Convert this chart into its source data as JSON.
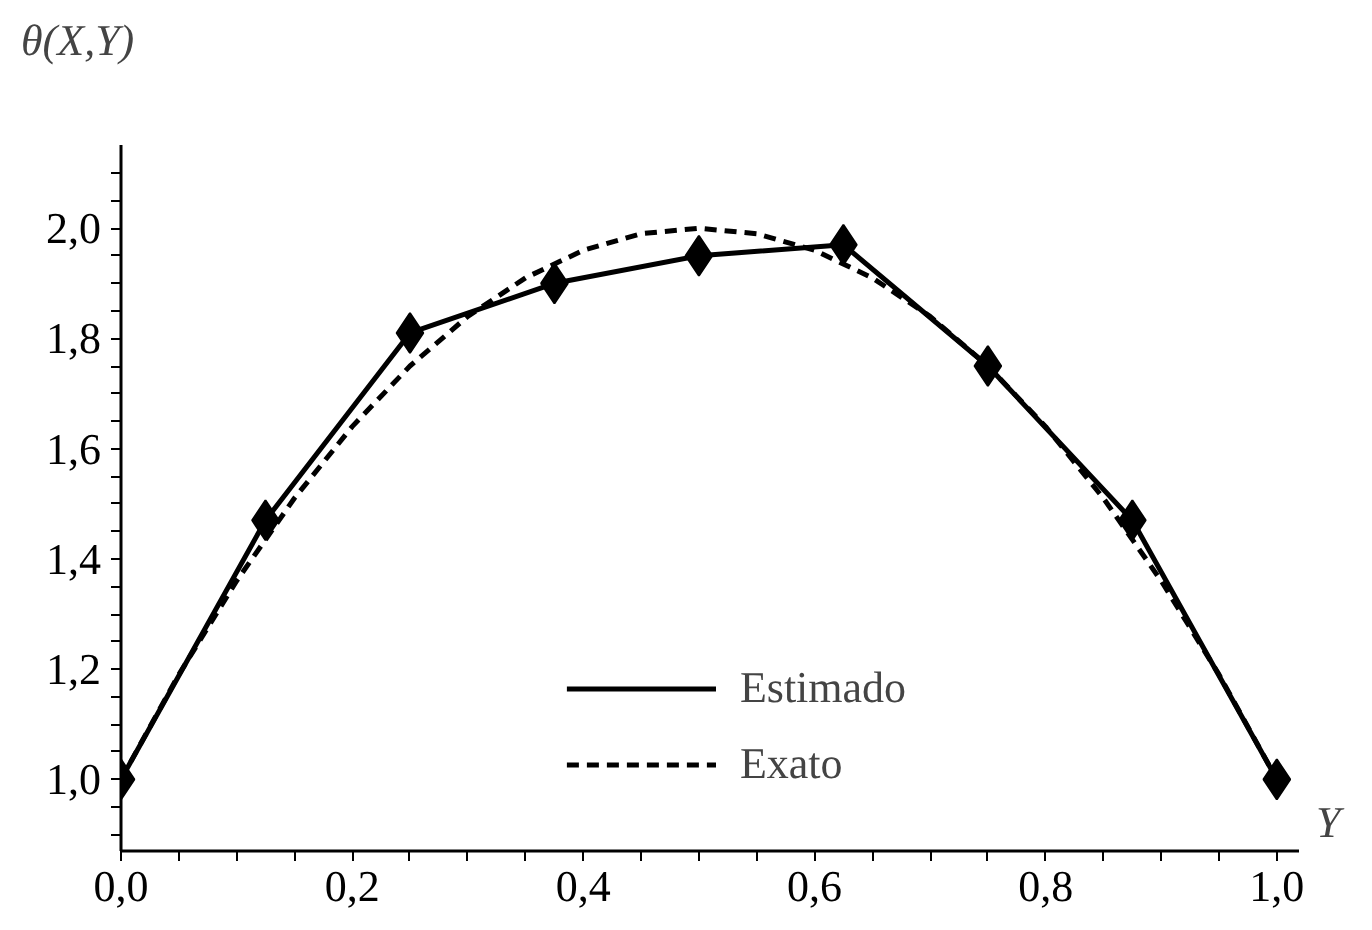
{
  "chart_data": {
    "type": "line",
    "xlabel": "Y",
    "ylabel": "θ(X,Y)",
    "xlim": [
      0,
      1.02
    ],
    "ylim": [
      0.87,
      2.15
    ],
    "xticks": [
      {
        "value": 0,
        "label": "0,0"
      },
      {
        "value": 0.05,
        "label": null
      },
      {
        "value": 0.1,
        "label": null
      },
      {
        "value": 0.15,
        "label": null
      },
      {
        "value": 0.2,
        "label": "0,2"
      },
      {
        "value": 0.25,
        "label": null
      },
      {
        "value": 0.3,
        "label": null
      },
      {
        "value": 0.35,
        "label": null
      },
      {
        "value": 0.4,
        "label": "0,4"
      },
      {
        "value": 0.45,
        "label": null
      },
      {
        "value": 0.5,
        "label": null
      },
      {
        "value": 0.55,
        "label": null
      },
      {
        "value": 0.6,
        "label": "0,6"
      },
      {
        "value": 0.65,
        "label": null
      },
      {
        "value": 0.7,
        "label": null
      },
      {
        "value": 0.75,
        "label": null
      },
      {
        "value": 0.8,
        "label": "0,8"
      },
      {
        "value": 0.85,
        "label": null
      },
      {
        "value": 0.9,
        "label": null
      },
      {
        "value": 0.95,
        "label": null
      },
      {
        "value": 1.0,
        "label": "1,0"
      }
    ],
    "yticks": [
      {
        "value": 0.9,
        "label": null
      },
      {
        "value": 0.95,
        "label": null
      },
      {
        "value": 1.0,
        "label": "1,0"
      },
      {
        "value": 1.05,
        "label": null
      },
      {
        "value": 1.1,
        "label": null
      },
      {
        "value": 1.15,
        "label": null
      },
      {
        "value": 1.2,
        "label": "1,2"
      },
      {
        "value": 1.25,
        "label": null
      },
      {
        "value": 1.3,
        "label": null
      },
      {
        "value": 1.35,
        "label": null
      },
      {
        "value": 1.4,
        "label": "1,4"
      },
      {
        "value": 1.45,
        "label": null
      },
      {
        "value": 1.5,
        "label": null
      },
      {
        "value": 1.55,
        "label": null
      },
      {
        "value": 1.6,
        "label": "1,6"
      },
      {
        "value": 1.65,
        "label": null
      },
      {
        "value": 1.7,
        "label": null
      },
      {
        "value": 1.75,
        "label": null
      },
      {
        "value": 1.8,
        "label": "1,8"
      },
      {
        "value": 1.85,
        "label": null
      },
      {
        "value": 1.9,
        "label": null
      },
      {
        "value": 1.95,
        "label": null
      },
      {
        "value": 2.0,
        "label": "2,0"
      },
      {
        "value": 2.05,
        "label": null
      },
      {
        "value": 2.1,
        "label": null
      }
    ],
    "grid": false,
    "legend": "bottom",
    "series": [
      {
        "name": "Estimado",
        "color": "#000000",
        "marker": "diamond",
        "line_style": "solid",
        "x": [
          0,
          0.125,
          0.25,
          0.375,
          0.5,
          0.625,
          0.75,
          0.875,
          1.0
        ],
        "values": [
          1.0,
          1.47,
          1.81,
          1.9,
          1.95,
          1.97,
          1.75,
          1.47,
          1.0
        ]
      },
      {
        "name": "Exato",
        "color": "#000000",
        "marker": "none",
        "line_style": "dashed",
        "x": [
          0,
          0.05,
          0.1,
          0.15,
          0.2,
          0.25,
          0.3,
          0.35,
          0.4,
          0.45,
          0.5,
          0.55,
          0.6,
          0.65,
          0.7,
          0.75,
          0.8,
          0.85,
          0.9,
          0.95,
          1.0
        ],
        "values": [
          1.0,
          1.19,
          1.36,
          1.51,
          1.64,
          1.75,
          1.84,
          1.91,
          1.96,
          1.99,
          2.0,
          1.99,
          1.96,
          1.91,
          1.84,
          1.75,
          1.64,
          1.51,
          1.36,
          1.19,
          1.0
        ]
      }
    ]
  }
}
